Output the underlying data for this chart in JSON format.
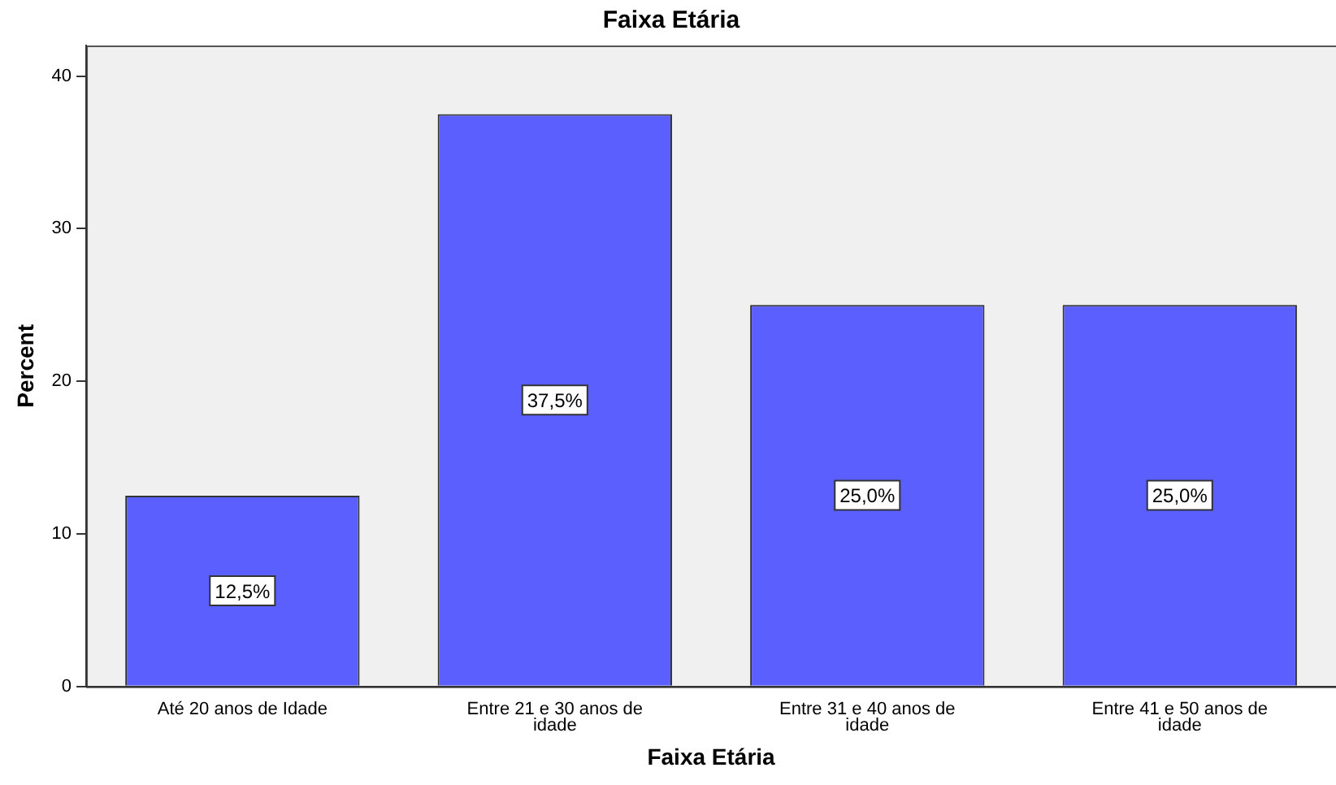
{
  "chart_data": {
    "type": "bar",
    "title": "Faixa Etária",
    "xlabel": "Faixa Etária",
    "ylabel": "Percent",
    "categories": [
      "Até 20 anos de Idade",
      "Entre 21 e 30 anos de idade",
      "Entre 31 e 40 anos de idade",
      "Entre 41 e 50 anos de idade"
    ],
    "values": [
      12.5,
      37.5,
      25,
      25
    ],
    "value_labels": [
      "12,5%",
      "37,5%",
      "25,0%",
      "25,0%"
    ],
    "color": "#5b5ffe",
    "ylim": [
      0,
      42
    ],
    "yticks": [
      0,
      10,
      20,
      30,
      40
    ],
    "grid": false,
    "legend": false
  }
}
